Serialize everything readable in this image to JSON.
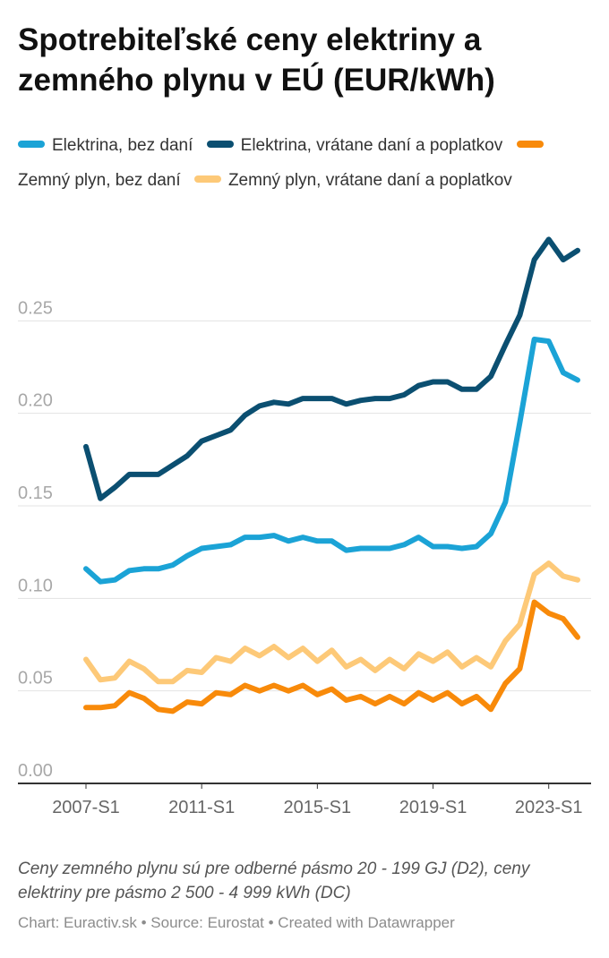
{
  "chart_data": {
    "type": "line",
    "title": "Spotrebiteľské ceny elektriny a zemného plynu v EÚ (EUR/kWh)",
    "categories": [
      "2007-S1",
      "2007-S2",
      "2008-S1",
      "2008-S2",
      "2009-S1",
      "2009-S2",
      "2010-S1",
      "2010-S2",
      "2011-S1",
      "2011-S2",
      "2012-S1",
      "2012-S2",
      "2013-S1",
      "2013-S2",
      "2014-S1",
      "2014-S2",
      "2015-S1",
      "2015-S2",
      "2016-S1",
      "2016-S2",
      "2017-S1",
      "2017-S2",
      "2018-S1",
      "2018-S2",
      "2019-S1",
      "2019-S2",
      "2020-S1",
      "2020-S2",
      "2021-S1",
      "2021-S2",
      "2022-S1",
      "2022-S2",
      "2023-S1",
      "2023-S2",
      "2024-S1"
    ],
    "x_tick_labels": [
      "2007-S1",
      "2011-S1",
      "2015-S1",
      "2019-S1",
      "2023-S1"
    ],
    "series": [
      {
        "name": "Elektrina, bez daní",
        "color": "#1ba3d6",
        "values": [
          0.116,
          0.109,
          0.11,
          0.115,
          0.116,
          0.116,
          0.118,
          0.123,
          0.127,
          0.128,
          0.129,
          0.133,
          0.133,
          0.134,
          0.131,
          0.133,
          0.131,
          0.131,
          0.126,
          0.127,
          0.127,
          0.127,
          0.129,
          0.133,
          0.128,
          0.128,
          0.127,
          0.128,
          0.135,
          0.152,
          0.195,
          0.24,
          0.239,
          0.222,
          0.218
        ]
      },
      {
        "name": "Elektrina, vrátane daní a poplatkov",
        "color": "#0b4f71",
        "values": [
          0.182,
          0.154,
          0.16,
          0.167,
          0.167,
          0.167,
          0.172,
          0.177,
          0.185,
          0.188,
          0.191,
          0.199,
          0.204,
          0.206,
          0.205,
          0.208,
          0.208,
          0.208,
          0.205,
          0.207,
          0.208,
          0.208,
          0.21,
          0.215,
          0.217,
          0.217,
          0.213,
          0.213,
          0.22,
          0.237,
          0.253,
          0.283,
          0.294,
          0.283,
          0.288
        ]
      },
      {
        "name": "Zemný plyn, bez daní",
        "color": "#f88a0a",
        "values": [
          0.041,
          0.041,
          0.042,
          0.049,
          0.046,
          0.04,
          0.039,
          0.044,
          0.043,
          0.049,
          0.048,
          0.053,
          0.05,
          0.053,
          0.05,
          0.053,
          0.048,
          0.051,
          0.045,
          0.047,
          0.043,
          0.047,
          0.043,
          0.049,
          0.045,
          0.049,
          0.043,
          0.047,
          0.04,
          0.054,
          0.062,
          0.098,
          0.092,
          0.089,
          0.079
        ]
      },
      {
        "name": "Zemný plyn, vrátane daní a poplatkov",
        "color": "#fdc978",
        "values": [
          0.067,
          0.056,
          0.057,
          0.066,
          0.062,
          0.055,
          0.055,
          0.061,
          0.06,
          0.068,
          0.066,
          0.073,
          0.069,
          0.074,
          0.068,
          0.073,
          0.066,
          0.072,
          0.063,
          0.067,
          0.061,
          0.067,
          0.062,
          0.07,
          0.066,
          0.071,
          0.063,
          0.068,
          0.063,
          0.077,
          0.086,
          0.113,
          0.119,
          0.112,
          0.11
        ]
      }
    ],
    "y_ticks": [
      "0.00",
      "0.05",
      "0.10",
      "0.15",
      "0.20",
      "0.25"
    ],
    "ylim": [
      0,
      0.3
    ],
    "xlabel": "",
    "ylabel": "",
    "grid": true,
    "legend": "top"
  },
  "note": "Ceny zemného plynu sú pre odberné pásmo 20 - 199 GJ (D2), ceny elektriny pre pásmo 2 500 - 4 999 kWh (DC)",
  "footer": "Chart: Euractiv.sk • Source: Eurostat • Created with Datawrapper"
}
